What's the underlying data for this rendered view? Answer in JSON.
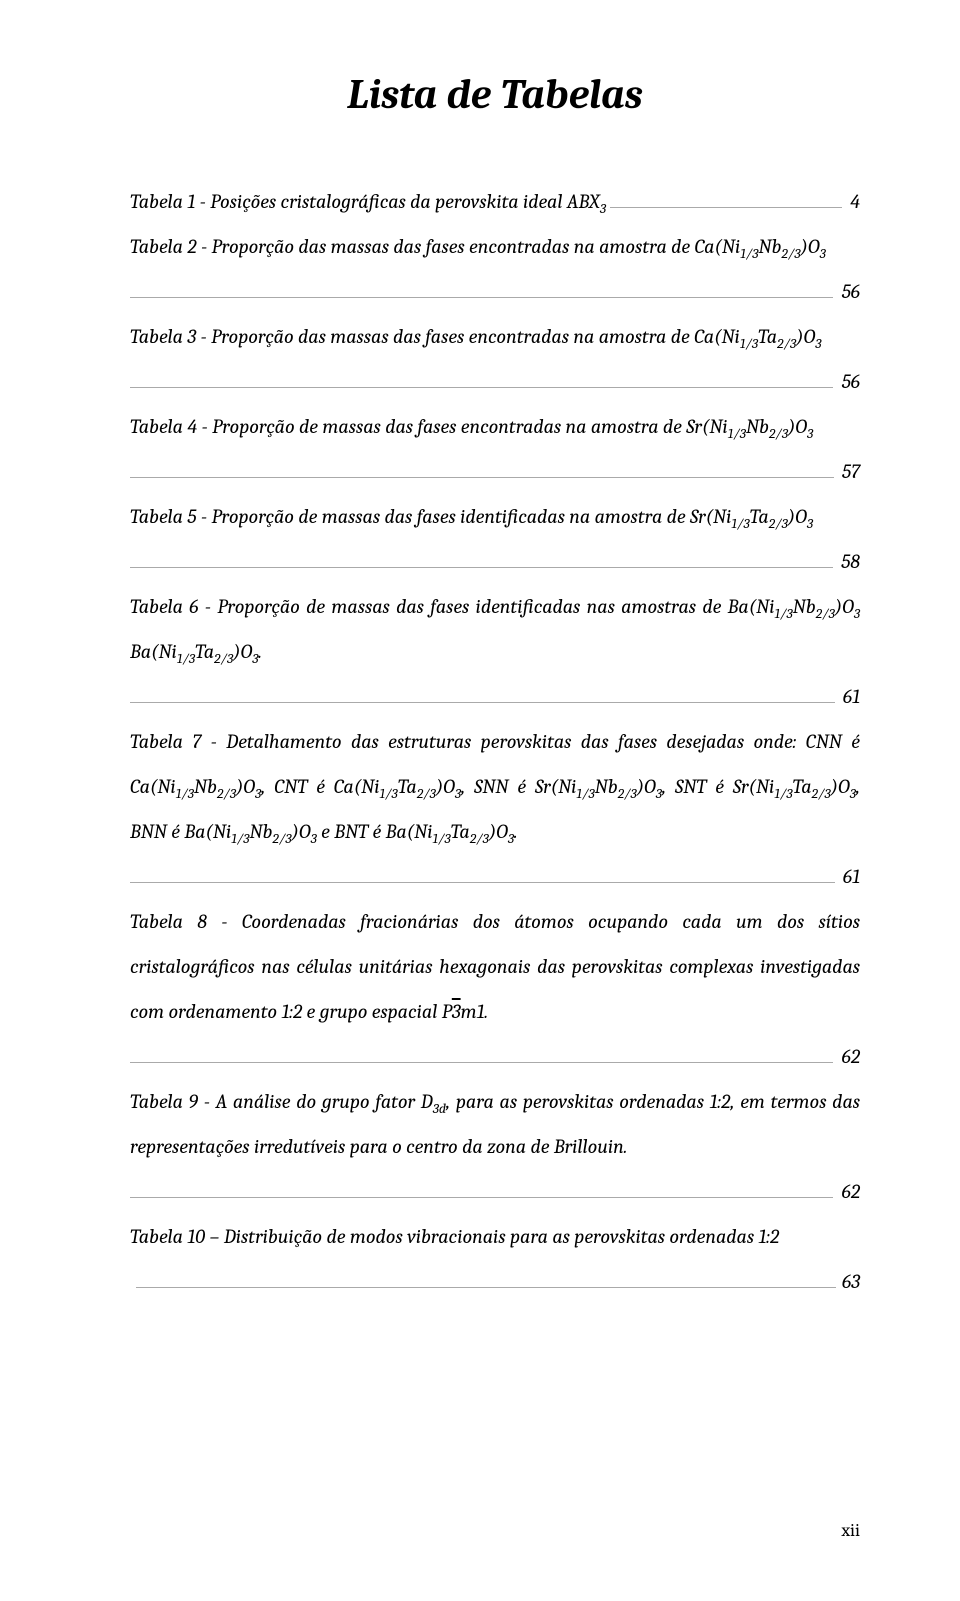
{
  "page": {
    "title": "Lista de Tabelas",
    "footer": "xii"
  },
  "entries": [
    {
      "text_pre": "Tabela 1 - Posições cristalográficas da perovskita ideal ABX",
      "sub1": "3",
      "text_post": "",
      "page": "4"
    },
    {
      "text_pre": "Tabela 2 - Proporção das massas das fases encontradas na amostra de Ca(Ni",
      "sub1": "1/3",
      "text_mid1": "Nb",
      "sub2": "2/3",
      "text_mid2": ")O",
      "sub3": "3",
      "text_post": "",
      "page": "56"
    },
    {
      "text_pre": "Tabela 3 - Proporção das massas das fases encontradas na amostra de Ca(Ni",
      "sub1": "1/3",
      "text_mid1": "Ta",
      "sub2": "2/3",
      "text_mid2": ")O",
      "sub3": "3",
      "text_post": "",
      "page": "56"
    },
    {
      "text_pre": "Tabela 4 - Proporção de massas das fases encontradas na amostra de Sr(Ni",
      "sub1": "1/3",
      "text_mid1": "Nb",
      "sub2": "2/3",
      "text_mid2": ")O",
      "sub3": "3",
      "text_post": "",
      "page": "57"
    },
    {
      "text_pre": "Tabela 5 - Proporção de massas das fases identificadas na amostra de Sr(Ni",
      "sub1": "1/3",
      "text_mid1": "Ta",
      "sub2": "2/3",
      "text_mid2": ")O",
      "sub3": "3",
      "text_post": "",
      "page": "58"
    },
    {
      "text_pre": "Tabela 6 - Proporção de massas das fases identificadas nas amostras de Ba(Ni",
      "sub1": "1/3",
      "text_mid1": "Nb",
      "sub2": "2/3",
      "text_mid2": ")O",
      "sub3": "3",
      "text_mid3": " Ba(Ni",
      "sub4": "1/3",
      "text_mid4": "Ta",
      "sub5": "2/3",
      "text_mid5": ")O",
      "sub6": "3",
      "text_post": ".",
      "page": "61"
    },
    {
      "html": "Tabela 7 - Detalhamento das estruturas perovskitas das fases desejadas onde: CNN é Ca(Ni<sub>1/3</sub>Nb<sub>2/3</sub>)O<sub>3</sub>, CNT é Ca(Ni<sub>1/3</sub>Ta<sub>2/3</sub>)O<sub>3</sub>, SNN é Sr(Ni<sub>1/3</sub>Nb<sub>2/3</sub>)O<sub>3</sub>, SNT é Sr(Ni<sub>1/3</sub>Ta<sub>2/3</sub>)O<sub>3</sub>, BNN é Ba(Ni<sub>1/3</sub>Nb<sub>2/3</sub>)O<sub>3</sub> e BNT é Ba(Ni<sub>1/3</sub>Ta<sub>2/3</sub>)O<sub>3</sub>.",
      "page": "61"
    },
    {
      "html": "Tabela 8 - Coordenadas fracionárias dos átomos ocupando cada um dos sítios cristalográficos nas células unitárias hexagonais das perovskitas complexas investigadas com ordenamento 1:2 e grupo espacial P<span class=\"overbar\">3</span>m1.",
      "page": "62"
    },
    {
      "html": "Tabela 9 - A análise do grupo fator D<sub>3d</sub>, para as perovskitas ordenadas 1:2, em termos das representações irredutíveis para o centro da zona de Brillouin.",
      "page": "62"
    },
    {
      "html": "Tabela 10 – Distribuição de modos vibracionais para as perovskitas ordenadas 1:2",
      "page": "63",
      "full_line_fill": true
    }
  ]
}
